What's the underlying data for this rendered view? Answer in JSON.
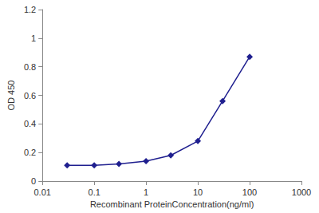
{
  "chart_data": {
    "type": "line",
    "x_label": "Recombinant ProteinConcentration(ng/ml)",
    "y_label": "OD 450",
    "x": [
      0.03,
      0.1,
      0.3,
      1,
      3,
      10,
      30,
      100
    ],
    "values": [
      0.11,
      0.11,
      0.12,
      0.14,
      0.18,
      0.28,
      0.56,
      0.87
    ],
    "color": "#1f1f8f",
    "marker": "diamond",
    "line_style": "solid",
    "log": "x",
    "xlim": [
      0.01,
      1000
    ],
    "xticks": [
      0.01,
      0.1,
      1,
      10,
      100,
      1000
    ],
    "ylim": [
      0,
      1.2
    ],
    "yticks": [
      0,
      0.2,
      0.4,
      0.6,
      0.8,
      1,
      1.2
    ],
    "grid": false
  }
}
